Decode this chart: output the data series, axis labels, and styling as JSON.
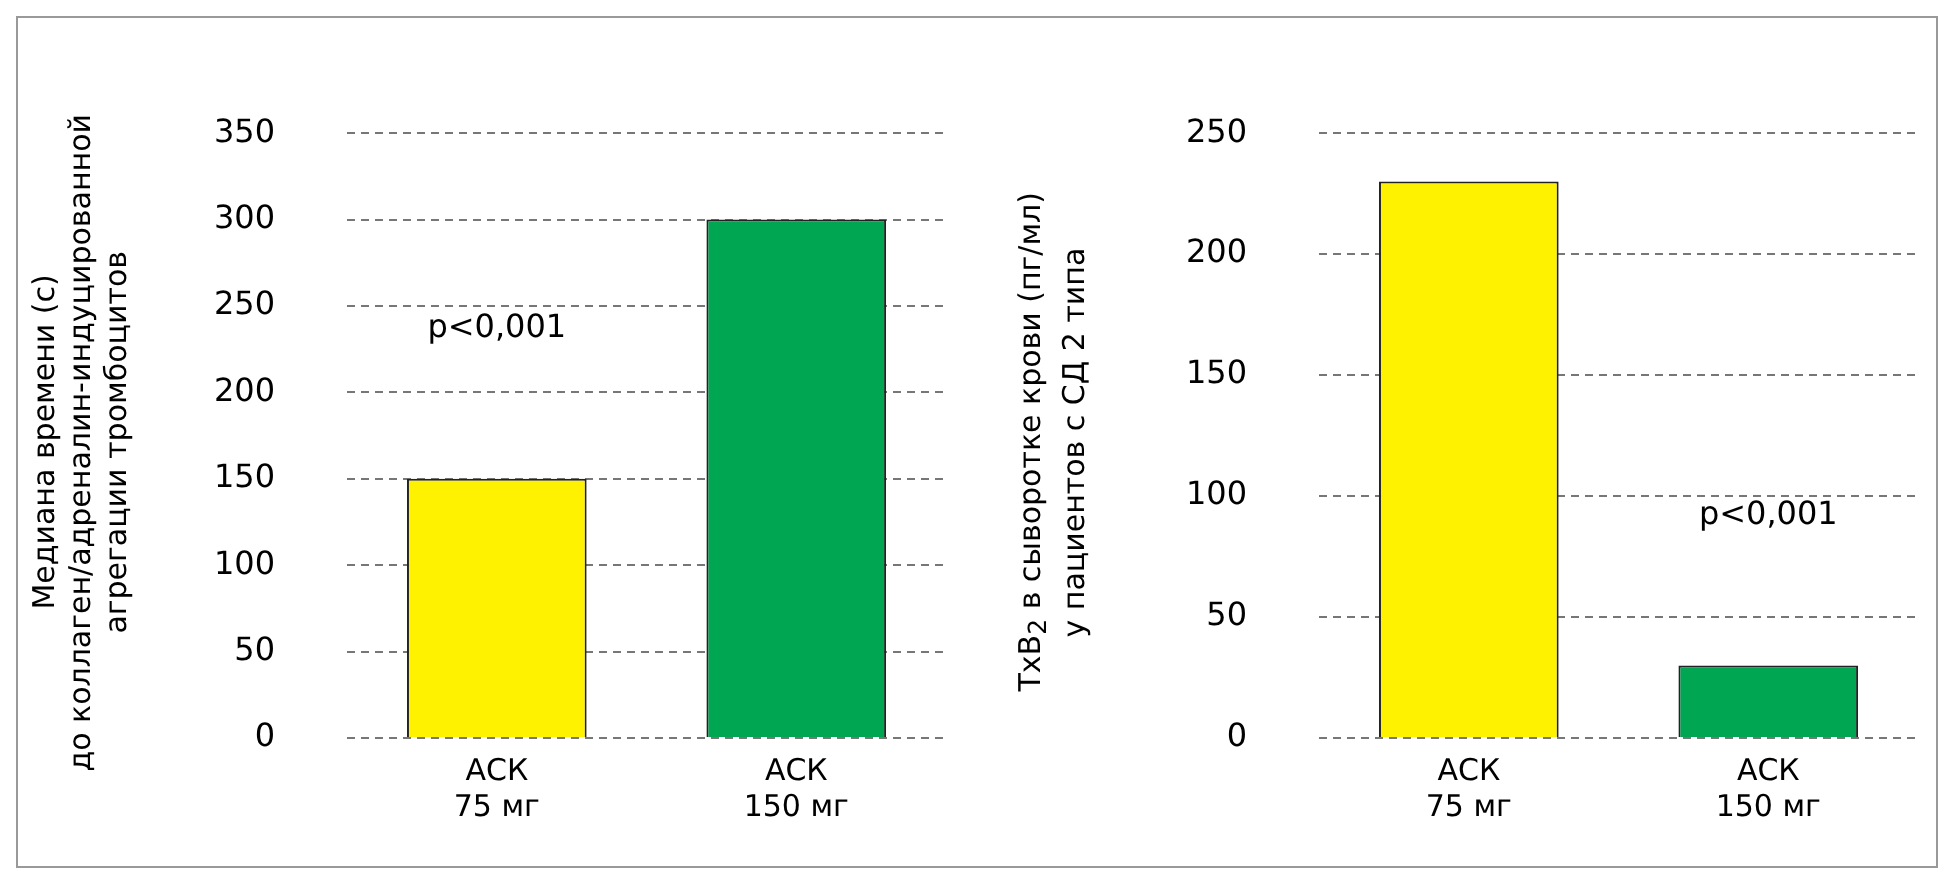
{
  "chart_data": [
    {
      "type": "bar",
      "ylabel": "Медиана времени (с)\nдо коллаген/адреналин-индуцированной\nагрегации тромбоцитов",
      "categories": [
        "АСК\n75 мг",
        "АСК\n150 мг"
      ],
      "values": [
        150,
        300
      ],
      "colors": [
        "#fff200",
        "#00a651"
      ],
      "ylim": [
        0,
        350
      ],
      "yticks": [
        0,
        50,
        100,
        150,
        200,
        250,
        300,
        350
      ],
      "grid": "y",
      "legend": false,
      "annotations": [
        "p<0,001"
      ]
    },
    {
      "type": "bar",
      "ylabel": "TxB$_{2}$ в сыворотке крови (пг/мл)\nу пациентов с СД 2 типа",
      "categories": [
        "АСК\n75 мг",
        "АСК\n150 мг"
      ],
      "values": [
        230,
        30
      ],
      "colors": [
        "#fff200",
        "#00a651"
      ],
      "ylim": [
        0,
        250
      ],
      "yticks": [
        0,
        50,
        100,
        150,
        200,
        250
      ],
      "grid": "y",
      "legend": false,
      "annotations": [
        "p<0,001"
      ]
    }
  ]
}
